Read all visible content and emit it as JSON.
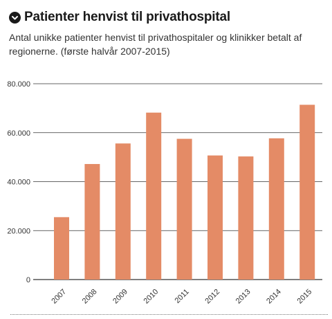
{
  "header": {
    "title": "Patienter henvist til privathospital",
    "subtitle": "Antal unikke patienter henvist til privathospitaler og klinikker betalt af regionerne. (første halvår 2007-2015)",
    "icon": "chevron-down-icon"
  },
  "colors": {
    "bar": "#e48b66",
    "grid": "#333333",
    "text": "#222222"
  },
  "chart_data": {
    "type": "bar",
    "title": "Patienter henvist til privathospital",
    "subtitle": "Antal unikke patienter henvist til privathospitaler og klinikker betalt af regionerne. (første halvår 2007-2015)",
    "xlabel": "",
    "ylabel": "",
    "categories": [
      "2007",
      "2008",
      "2009",
      "2010",
      "2011",
      "2012",
      "2013",
      "2014",
      "2015"
    ],
    "values": [
      25500,
      47200,
      55600,
      68200,
      57500,
      50700,
      50300,
      57700,
      71400
    ],
    "ylim": [
      0,
      80000
    ],
    "yticks": [
      0,
      20000,
      40000,
      60000,
      80000
    ],
    "ytick_labels": [
      "0",
      "20.000",
      "40.000",
      "60.000",
      "80.000"
    ],
    "grid": true,
    "legend": "none"
  }
}
